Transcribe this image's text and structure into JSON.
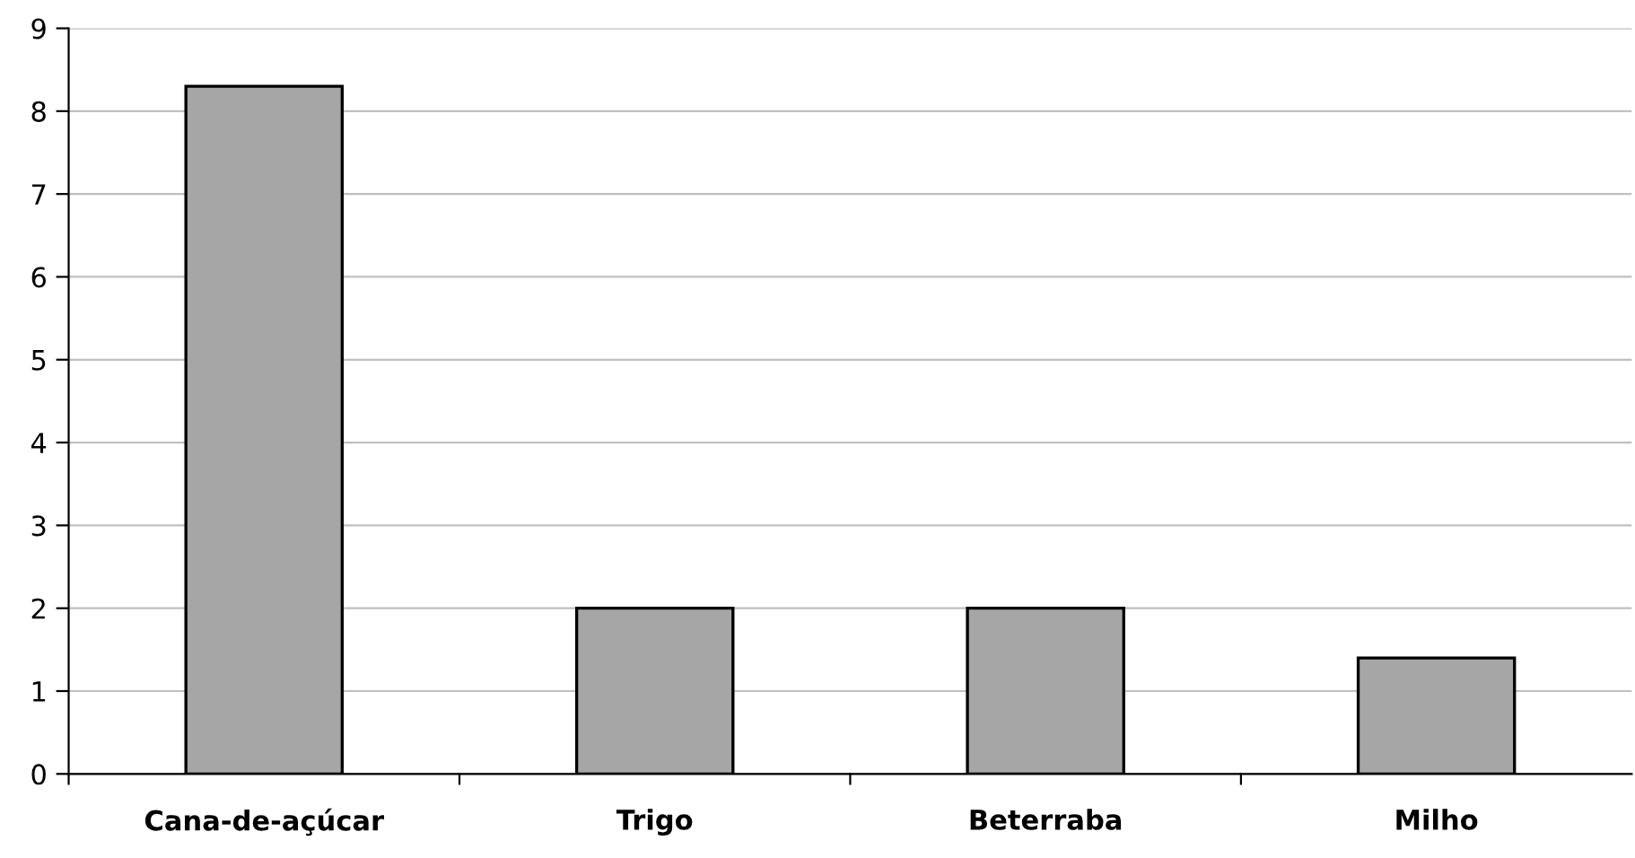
{
  "chart_data": {
    "type": "bar",
    "categories": [
      "Cana-de-açúcar",
      "Trigo",
      "Beterraba",
      "Milho"
    ],
    "values": [
      8.3,
      2.0,
      2.0,
      1.4
    ],
    "color": "#a6a6a6",
    "ylim": [
      0,
      9
    ],
    "yticks": [
      0,
      1,
      2,
      3,
      4,
      5,
      6,
      7,
      8,
      9
    ],
    "grid": "y"
  }
}
